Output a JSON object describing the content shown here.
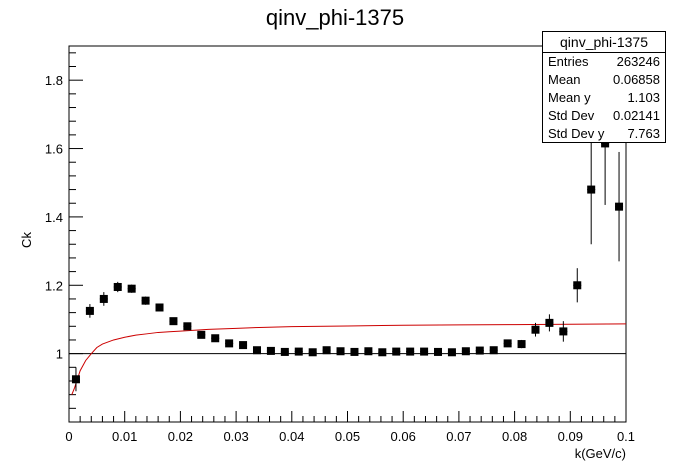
{
  "chart_data": {
    "type": "scatter",
    "title": "qinv_phi-1375",
    "xlabel": "k(GeV/c)",
    "ylabel": "Ck",
    "xlim": [
      0,
      0.1
    ],
    "ylim": [
      0.8,
      1.9
    ],
    "x_ticks": [
      {
        "v": 0,
        "label": "0"
      },
      {
        "v": 0.01,
        "label": "0.01"
      },
      {
        "v": 0.02,
        "label": "0.02"
      },
      {
        "v": 0.03,
        "label": "0.03"
      },
      {
        "v": 0.04,
        "label": "0.04"
      },
      {
        "v": 0.05,
        "label": "0.05"
      },
      {
        "v": 0.06,
        "label": "0.06"
      },
      {
        "v": 0.07,
        "label": "0.07"
      },
      {
        "v": 0.08,
        "label": "0.08"
      },
      {
        "v": 0.09,
        "label": "0.09"
      },
      {
        "v": 0.1,
        "label": "0.1"
      }
    ],
    "y_ticks": [
      {
        "v": 1.0,
        "label": "1"
      },
      {
        "v": 1.2,
        "label": "1.2"
      },
      {
        "v": 1.4,
        "label": "1.4"
      },
      {
        "v": 1.6,
        "label": "1.6"
      },
      {
        "v": 1.8,
        "label": "1.8"
      }
    ],
    "reference_line_y": 1.0,
    "series": [
      {
        "type": "points",
        "color": "#000000",
        "x": [
          0.00125,
          0.00375,
          0.00625,
          0.00875,
          0.01125,
          0.01375,
          0.01625,
          0.01875,
          0.02125,
          0.02375,
          0.02625,
          0.02875,
          0.03125,
          0.03375,
          0.03625,
          0.03875,
          0.04125,
          0.04375,
          0.04625,
          0.04875,
          0.05125,
          0.05375,
          0.05625,
          0.05875,
          0.06125,
          0.06375,
          0.06625,
          0.06875,
          0.07125,
          0.07375,
          0.07625,
          0.07875,
          0.08125,
          0.08375,
          0.08625,
          0.08875,
          0.09125,
          0.09375,
          0.09625,
          0.09875
        ],
        "y": [
          0.925,
          1.125,
          1.16,
          1.195,
          1.19,
          1.155,
          1.135,
          1.095,
          1.08,
          1.055,
          1.045,
          1.03,
          1.025,
          1.01,
          1.008,
          1.005,
          1.006,
          1.004,
          1.01,
          1.007,
          1.005,
          1.007,
          1.004,
          1.006,
          1.006,
          1.006,
          1.005,
          1.004,
          1.007,
          1.009,
          1.01,
          1.03,
          1.028,
          1.07,
          1.09,
          1.065,
          1.2,
          1.48,
          1.615,
          1.43
        ],
        "err": [
          0.035,
          0.02,
          0.02,
          0.015,
          0.012,
          0.012,
          0.01,
          0.01,
          0.008,
          0.008,
          0.007,
          0.007,
          0.006,
          0.006,
          0.006,
          0.005,
          0.005,
          0.005,
          0.005,
          0.005,
          0.005,
          0.005,
          0.005,
          0.005,
          0.005,
          0.005,
          0.005,
          0.006,
          0.006,
          0.007,
          0.008,
          0.01,
          0.012,
          0.02,
          0.025,
          0.03,
          0.05,
          0.16,
          0.18,
          0.16
        ]
      },
      {
        "type": "line",
        "color": "#cc0000",
        "x": [
          0.0005,
          0.001,
          0.0015,
          0.002,
          0.003,
          0.004,
          0.005,
          0.006,
          0.008,
          0.01,
          0.012,
          0.014,
          0.016,
          0.018,
          0.02,
          0.025,
          0.03,
          0.035,
          0.04,
          0.05,
          0.06,
          0.07,
          0.08,
          0.09,
          0.1
        ],
        "y": [
          0.88,
          0.9,
          0.925,
          0.95,
          0.98,
          1.0,
          1.018,
          1.028,
          1.04,
          1.048,
          1.054,
          1.058,
          1.062,
          1.064,
          1.066,
          1.071,
          1.074,
          1.077,
          1.079,
          1.081,
          1.083,
          1.084,
          1.085,
          1.086,
          1.087
        ]
      }
    ],
    "stats": {
      "title": "qinv_phi-1375",
      "rows": [
        {
          "label": "Entries",
          "value": "263246"
        },
        {
          "label": "Mean",
          "value": "0.06858"
        },
        {
          "label": "Mean y",
          "value": "1.103"
        },
        {
          "label": "Std Dev",
          "value": "0.02141"
        },
        {
          "label": "Std Dev y",
          "value": "7.763"
        }
      ]
    }
  }
}
